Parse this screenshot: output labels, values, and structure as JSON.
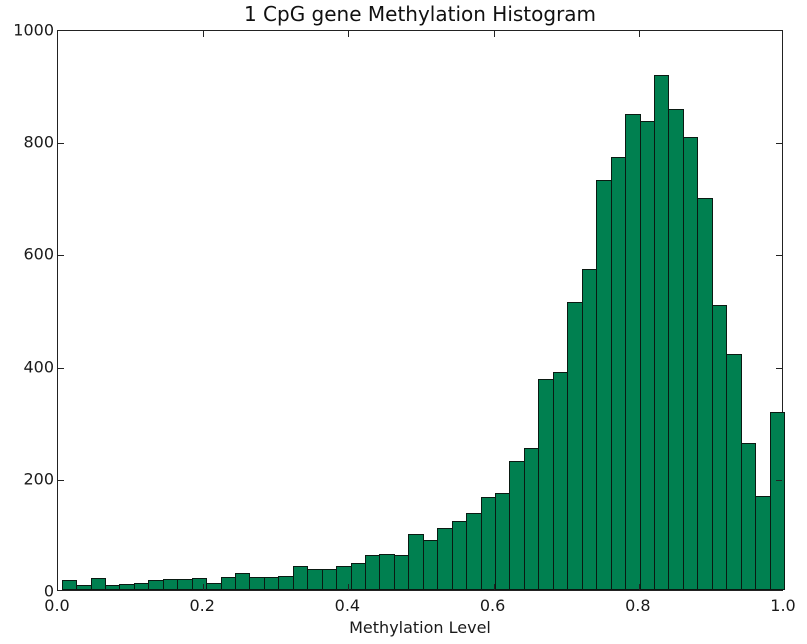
{
  "chart_data": {
    "type": "bar",
    "title": "1 CpG gene Methylation Histogram",
    "xlabel": "Methylation Level",
    "ylabel": "",
    "xlim": [
      0.0,
      1.0
    ],
    "ylim": [
      0,
      1000
    ],
    "grid": false,
    "legend": null,
    "xticks": [
      "0.0",
      "0.2",
      "0.4",
      "0.6",
      "0.8",
      "1.0"
    ],
    "yticks": [
      "0",
      "200",
      "400",
      "600",
      "800",
      "1000"
    ],
    "bar_color": "#008050",
    "bin_start": 0.005,
    "bin_width": 0.0199,
    "values": [
      17,
      9,
      21,
      9,
      11,
      13,
      18,
      20,
      20,
      21,
      13,
      23,
      30,
      23,
      23,
      25,
      43,
      37,
      37,
      43,
      48,
      62,
      65,
      62,
      100,
      89,
      111,
      123,
      138,
      165,
      173,
      230,
      253,
      376,
      388,
      513,
      572,
      731,
      771,
      849,
      836,
      918,
      857,
      808,
      699,
      508,
      420,
      262,
      167,
      317
    ]
  }
}
